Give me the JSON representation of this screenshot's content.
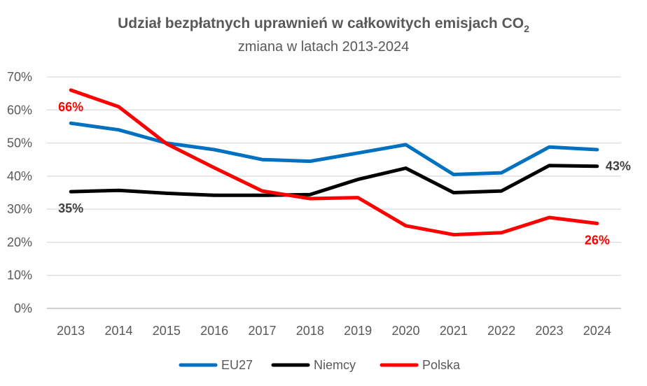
{
  "chart_data": {
    "type": "line",
    "title": "Udział bezpłatnych uprawnień w całkowitych emisjach CO",
    "title_subscript": "2",
    "subtitle": "zmiana w latach 2013-2024",
    "xlabel": "",
    "ylabel": "",
    "ylim": [
      0,
      70
    ],
    "yticks": [
      0,
      10,
      20,
      30,
      40,
      50,
      60,
      70
    ],
    "ytick_labels": [
      "0%",
      "10%",
      "20%",
      "30%",
      "40%",
      "50%",
      "60%",
      "70%"
    ],
    "grid": true,
    "legend_position": "bottom",
    "categories": [
      "2013",
      "2014",
      "2015",
      "2016",
      "2017",
      "2018",
      "2019",
      "2020",
      "2021",
      "2022",
      "2023",
      "2024"
    ],
    "series": [
      {
        "name": "EU27",
        "color": "#0070C0",
        "values": [
          56,
          54,
          50,
          48,
          45,
          44.5,
          47,
          49.5,
          40.5,
          41,
          48.8,
          48
        ]
      },
      {
        "name": "Niemcy",
        "color": "#000000",
        "values": [
          35.3,
          35.7,
          34.8,
          34.2,
          34.2,
          34.4,
          39,
          42.4,
          35,
          35.5,
          43.2,
          43
        ]
      },
      {
        "name": "Polska",
        "color": "#FF0000",
        "values": [
          66,
          61,
          49.8,
          42.5,
          35.5,
          33.2,
          33.5,
          25,
          22.3,
          22.9,
          27.5,
          25.7
        ]
      }
    ],
    "data_labels": [
      {
        "series": "Polska",
        "category": "2013",
        "text": "66%",
        "color": "#FF0000",
        "placement": "below"
      },
      {
        "series": "Niemcy",
        "category": "2013",
        "text": "35%",
        "color": "#404040",
        "placement": "below"
      },
      {
        "series": "Niemcy",
        "category": "2024",
        "text": "43%",
        "color": "#404040",
        "placement": "right"
      },
      {
        "series": "Polska",
        "category": "2024",
        "text": "26%",
        "color": "#FF0000",
        "placement": "below"
      }
    ]
  }
}
